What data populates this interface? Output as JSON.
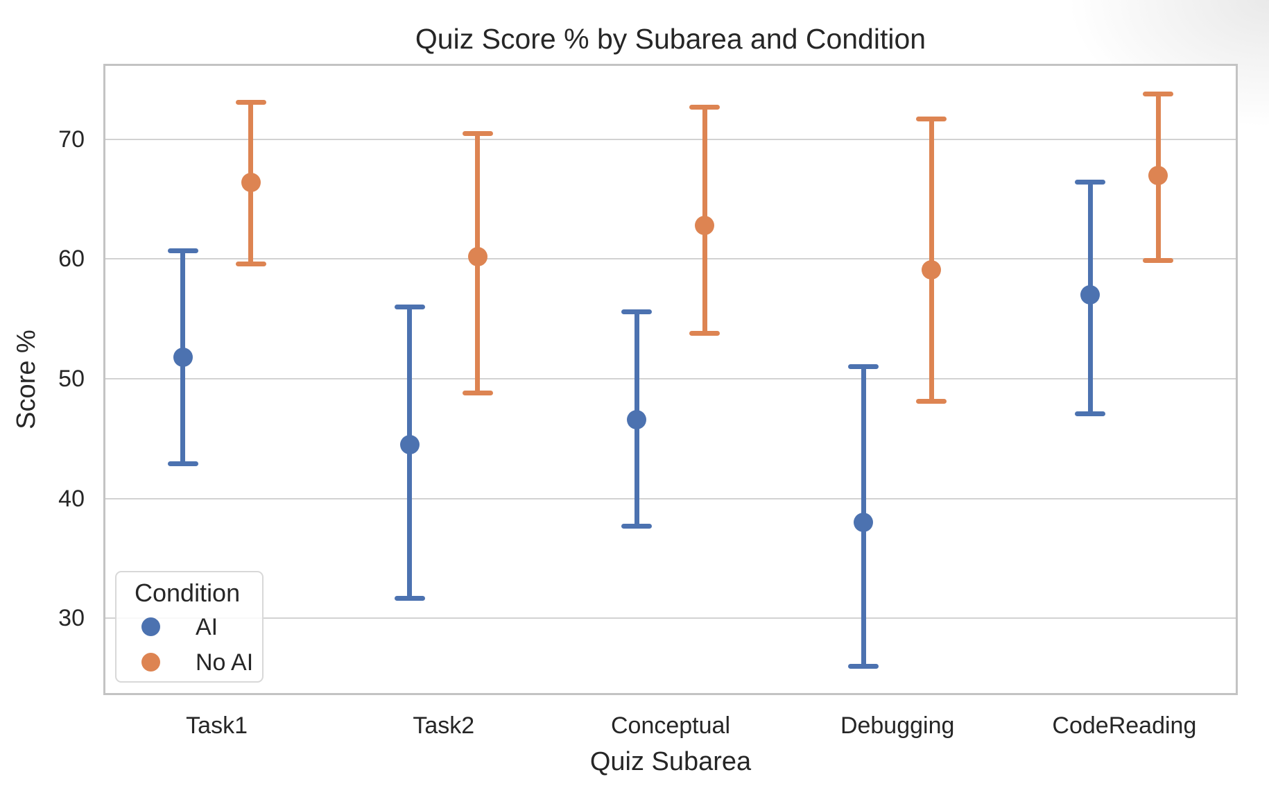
{
  "title": "Quiz Score % by Subarea and Condition",
  "x_axis": {
    "label": "Quiz Subarea",
    "categories": [
      "Task1",
      "Task2",
      "Conceptual",
      "Debugging",
      "CodeReading"
    ]
  },
  "y_axis": {
    "label": "Score %",
    "tick_labels": [
      "30",
      "40",
      "50",
      "60",
      "70"
    ],
    "ticks": [
      30,
      40,
      50,
      60,
      70
    ]
  },
  "legend": {
    "title": "Condition",
    "items": [
      {
        "label": "AI",
        "color": "#4C72B0"
      },
      {
        "label": "No AI",
        "color": "#DD8452"
      }
    ]
  },
  "colors": {
    "ai_blue": "#4C72B0",
    "no_ai_orange": "#DD8452",
    "gridline": "#d2d2d2",
    "spine": "#c3c3c3",
    "text": "#262626"
  },
  "chart_data": {
    "type": "scatter",
    "subtype": "pointplot-with-error-bars",
    "title": "Quiz Score % by Subarea and Condition",
    "xlabel": "Quiz Subarea",
    "ylabel": "Score %",
    "categories": [
      "Task1",
      "Task2",
      "Conceptual",
      "Debugging",
      "CodeReading"
    ],
    "ylim": [
      23.6,
      76.3
    ],
    "yticks": [
      30,
      40,
      50,
      60,
      70
    ],
    "grid": "horizontal",
    "legend_position": "lower-left",
    "series": [
      {
        "name": "AI",
        "color": "#4C72B0",
        "values": [
          51.8,
          44.5,
          46.6,
          38.0,
          57.0
        ],
        "ci_low": [
          42.9,
          31.7,
          37.7,
          26.0,
          47.1
        ],
        "ci_high": [
          60.7,
          56.0,
          55.6,
          51.0,
          66.4
        ]
      },
      {
        "name": "No AI",
        "color": "#DD8452",
        "values": [
          66.4,
          60.2,
          62.8,
          59.1,
          67.0
        ],
        "ci_low": [
          59.6,
          48.8,
          53.8,
          48.1,
          59.9
        ],
        "ci_high": [
          73.1,
          70.5,
          72.7,
          71.7,
          73.8
        ]
      }
    ]
  }
}
